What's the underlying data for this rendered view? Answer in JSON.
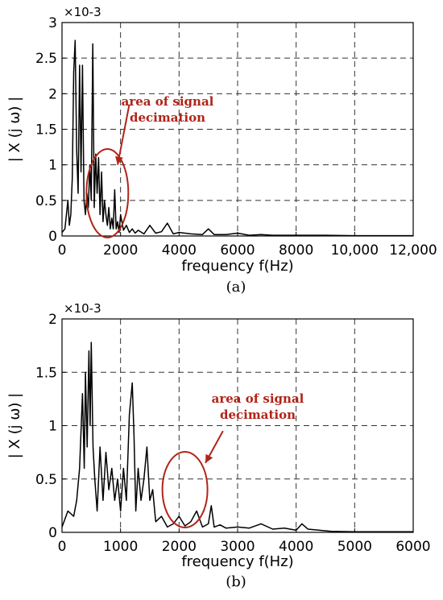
{
  "chart_data": [
    {
      "type": "line",
      "panel": "a",
      "caption": "(a)",
      "xlabel": "frequency f(Hz)",
      "ylabel": "| X (j ω) |",
      "y_multiplier": "×10-3",
      "xlim": [
        0,
        12000
      ],
      "ylim": [
        0,
        3
      ],
      "grid": true,
      "xticks": [
        0,
        2000,
        4000,
        6000,
        8000,
        10000,
        12000
      ],
      "xtick_labels": [
        "0",
        "2000",
        "4000",
        "6000",
        "8000",
        "10,000",
        "12,000"
      ],
      "yticks": [
        0,
        0.5,
        1,
        1.5,
        2,
        2.5,
        3
      ],
      "ytick_labels": [
        "0",
        "0.5",
        "1",
        "1.5",
        "2",
        "2.5",
        "3"
      ],
      "annotation": {
        "text_line1": "area of signal",
        "text_line2": "decimation",
        "color": "#b02418",
        "ellipse_center": [
          1550,
          0.6
        ],
        "arrow_from": [
          2300,
          1.85
        ],
        "arrow_to": [
          1900,
          1.0
        ]
      },
      "series": [
        {
          "x": [
            0,
            100,
            200,
            250,
            300,
            350,
            400,
            450,
            500,
            550,
            600,
            650,
            700,
            750,
            800,
            850,
            900,
            950,
            1000,
            1050,
            1100,
            1150,
            1200,
            1250,
            1300,
            1350,
            1400,
            1450,
            1500,
            1550,
            1600,
            1650,
            1700,
            1750,
            1800,
            1850,
            1900,
            1950,
            2000,
            2100,
            2200,
            2300,
            2400,
            2500,
            2600,
            2800,
            3000,
            3200,
            3400,
            3600,
            3800,
            4000,
            4400,
            4800,
            5000,
            5200,
            5600,
            6000,
            6400,
            6800,
            7200,
            7600,
            8000,
            9000,
            10000,
            11000,
            12000
          ],
          "y": [
            0.05,
            0.1,
            0.5,
            0.15,
            0.3,
            0.8,
            2.3,
            2.75,
            1.2,
            0.6,
            2.4,
            0.9,
            2.4,
            0.5,
            0.3,
            0.6,
            0.4,
            1.0,
            0.5,
            2.7,
            0.4,
            1.15,
            0.6,
            1.1,
            0.3,
            0.9,
            0.2,
            0.5,
            0.3,
            0.15,
            0.4,
            0.1,
            0.25,
            0.1,
            0.65,
            0.1,
            0.2,
            0.05,
            0.3,
            0.08,
            0.15,
            0.05,
            0.1,
            0.04,
            0.08,
            0.03,
            0.15,
            0.04,
            0.06,
            0.18,
            0.03,
            0.05,
            0.03,
            0.02,
            0.1,
            0.02,
            0.02,
            0.04,
            0.01,
            0.02,
            0.01,
            0.01,
            0.01,
            0.01,
            0.005,
            0.005,
            0.005
          ]
        }
      ]
    },
    {
      "type": "line",
      "panel": "b",
      "caption": "(b)",
      "xlabel": "frequency f(Hz)",
      "ylabel": "| X (j ω) |",
      "y_multiplier": "×10-3",
      "xlim": [
        0,
        6000
      ],
      "ylim": [
        0,
        2
      ],
      "grid": true,
      "xticks": [
        0,
        1000,
        2000,
        3000,
        4000,
        5000,
        6000
      ],
      "xtick_labels": [
        "0",
        "1000",
        "2000",
        "3000",
        "4000",
        "5000",
        "6000"
      ],
      "yticks": [
        0,
        0.5,
        1,
        1.5,
        2
      ],
      "ytick_labels": [
        "0",
        "0.5",
        "1",
        "1.5",
        "2"
      ],
      "annotation": {
        "text_line1": "area of signal",
        "text_line2": "decimation",
        "color": "#b02418",
        "ellipse_center": [
          2100,
          0.4
        ],
        "arrow_from": [
          2750,
          0.95
        ],
        "arrow_to": [
          2450,
          0.65
        ]
      },
      "series": [
        {
          "x": [
            0,
            100,
            200,
            250,
            300,
            350,
            380,
            400,
            430,
            460,
            480,
            500,
            530,
            560,
            600,
            650,
            700,
            750,
            800,
            850,
            900,
            950,
            1000,
            1050,
            1100,
            1150,
            1200,
            1230,
            1260,
            1300,
            1350,
            1400,
            1450,
            1500,
            1550,
            1600,
            1700,
            1800,
            1900,
            2000,
            2100,
            2200,
            2300,
            2400,
            2500,
            2550,
            2600,
            2700,
            2800,
            3000,
            3200,
            3400,
            3600,
            3800,
            4000,
            4100,
            4200,
            4400,
            4600,
            5000,
            5400,
            5800,
            6000
          ],
          "y": [
            0.05,
            0.2,
            0.15,
            0.3,
            0.6,
            1.3,
            0.6,
            1.5,
            0.8,
            1.7,
            1.0,
            1.78,
            0.8,
            0.5,
            0.2,
            0.8,
            0.3,
            0.75,
            0.4,
            0.6,
            0.3,
            0.5,
            0.2,
            0.6,
            0.3,
            1.1,
            1.4,
            0.9,
            0.2,
            0.6,
            0.3,
            0.5,
            0.8,
            0.3,
            0.4,
            0.1,
            0.15,
            0.05,
            0.08,
            0.15,
            0.06,
            0.1,
            0.2,
            0.05,
            0.08,
            0.25,
            0.05,
            0.07,
            0.04,
            0.05,
            0.04,
            0.08,
            0.03,
            0.04,
            0.02,
            0.08,
            0.03,
            0.02,
            0.01,
            0.005,
            0.005,
            0.005,
            0.005
          ]
        }
      ]
    }
  ]
}
